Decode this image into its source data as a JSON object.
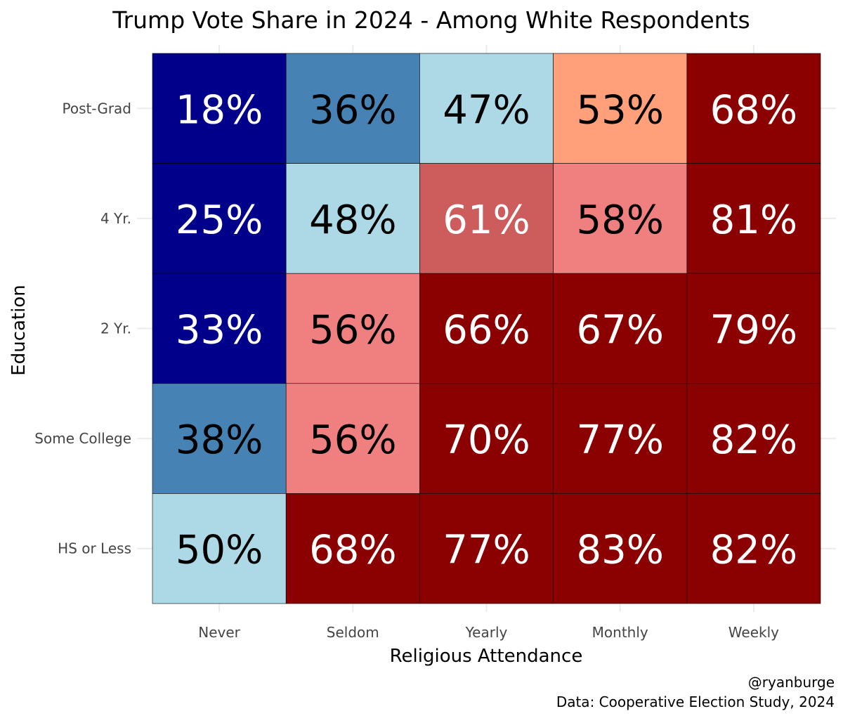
{
  "chart_data": {
    "type": "heatmap",
    "title": "Trump Vote Share in 2024 - Among White Respondents",
    "xlabel": "Religious Attendance",
    "ylabel": "Education",
    "x_categories": [
      "Never",
      "Seldom",
      "Yearly",
      "Monthly",
      "Weekly"
    ],
    "y_categories": [
      "Post-Grad",
      "4 Yr.",
      "2 Yr.",
      "Some College",
      "HS or Less"
    ],
    "values": [
      [
        18,
        36,
        47,
        53,
        68
      ],
      [
        25,
        48,
        61,
        58,
        81
      ],
      [
        33,
        56,
        66,
        67,
        79
      ],
      [
        38,
        56,
        70,
        77,
        82
      ],
      [
        50,
        68,
        77,
        83,
        82
      ]
    ],
    "value_suffix": "%",
    "color_bins": [
      {
        "max": 35,
        "color": "#00008b",
        "text_color": "#ffffff"
      },
      {
        "max": 45,
        "color": "#4682b4",
        "text_color": "#000000"
      },
      {
        "max": 50,
        "color": "#add8e6",
        "text_color": "#000000"
      },
      {
        "max": 55,
        "color": "#ffa07a",
        "text_color": "#000000"
      },
      {
        "max": 60,
        "color": "#f08080",
        "text_color": "#000000"
      },
      {
        "max": 65,
        "color": "#cd5c5c",
        "text_color": "#ffffff"
      },
      {
        "max": 100,
        "color": "#8b0000",
        "text_color": "#ffffff"
      }
    ]
  },
  "caption": {
    "author": "@ryanburge",
    "source": "Data: Cooperative Election Study, 2024"
  }
}
